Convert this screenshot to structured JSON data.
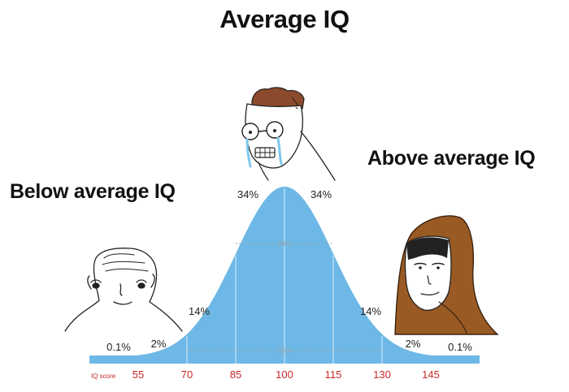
{
  "captions": {
    "average": "Average IQ",
    "below": "Below average IQ",
    "above": "Above average IQ"
  },
  "chart_data": {
    "type": "area",
    "x_axis_label": "IQ score",
    "ticks": [
      55,
      70,
      85,
      100,
      115,
      130,
      145
    ],
    "mean": 100,
    "sd": 15,
    "xlim": [
      40,
      160
    ],
    "regions": [
      {
        "label": "0.1%",
        "from": 40,
        "to": 55
      },
      {
        "label": "2%",
        "from": 55,
        "to": 70
      },
      {
        "label": "14%",
        "from": 70,
        "to": 85
      },
      {
        "label": "34%",
        "from": 85,
        "to": 100
      },
      {
        "label": "34%",
        "from": 100,
        "to": 115
      },
      {
        "label": "14%",
        "from": 115,
        "to": 130
      },
      {
        "label": "2%",
        "from": 130,
        "to": 145
      },
      {
        "label": "0.1%",
        "from": 145,
        "to": 160
      }
    ],
    "interval_labels": {
      "one_sd": "68%",
      "two_sd": "95%"
    },
    "colors": {
      "fill": "#6db8e6",
      "ticks": "#c62828",
      "bar": "#6db8e6"
    }
  }
}
